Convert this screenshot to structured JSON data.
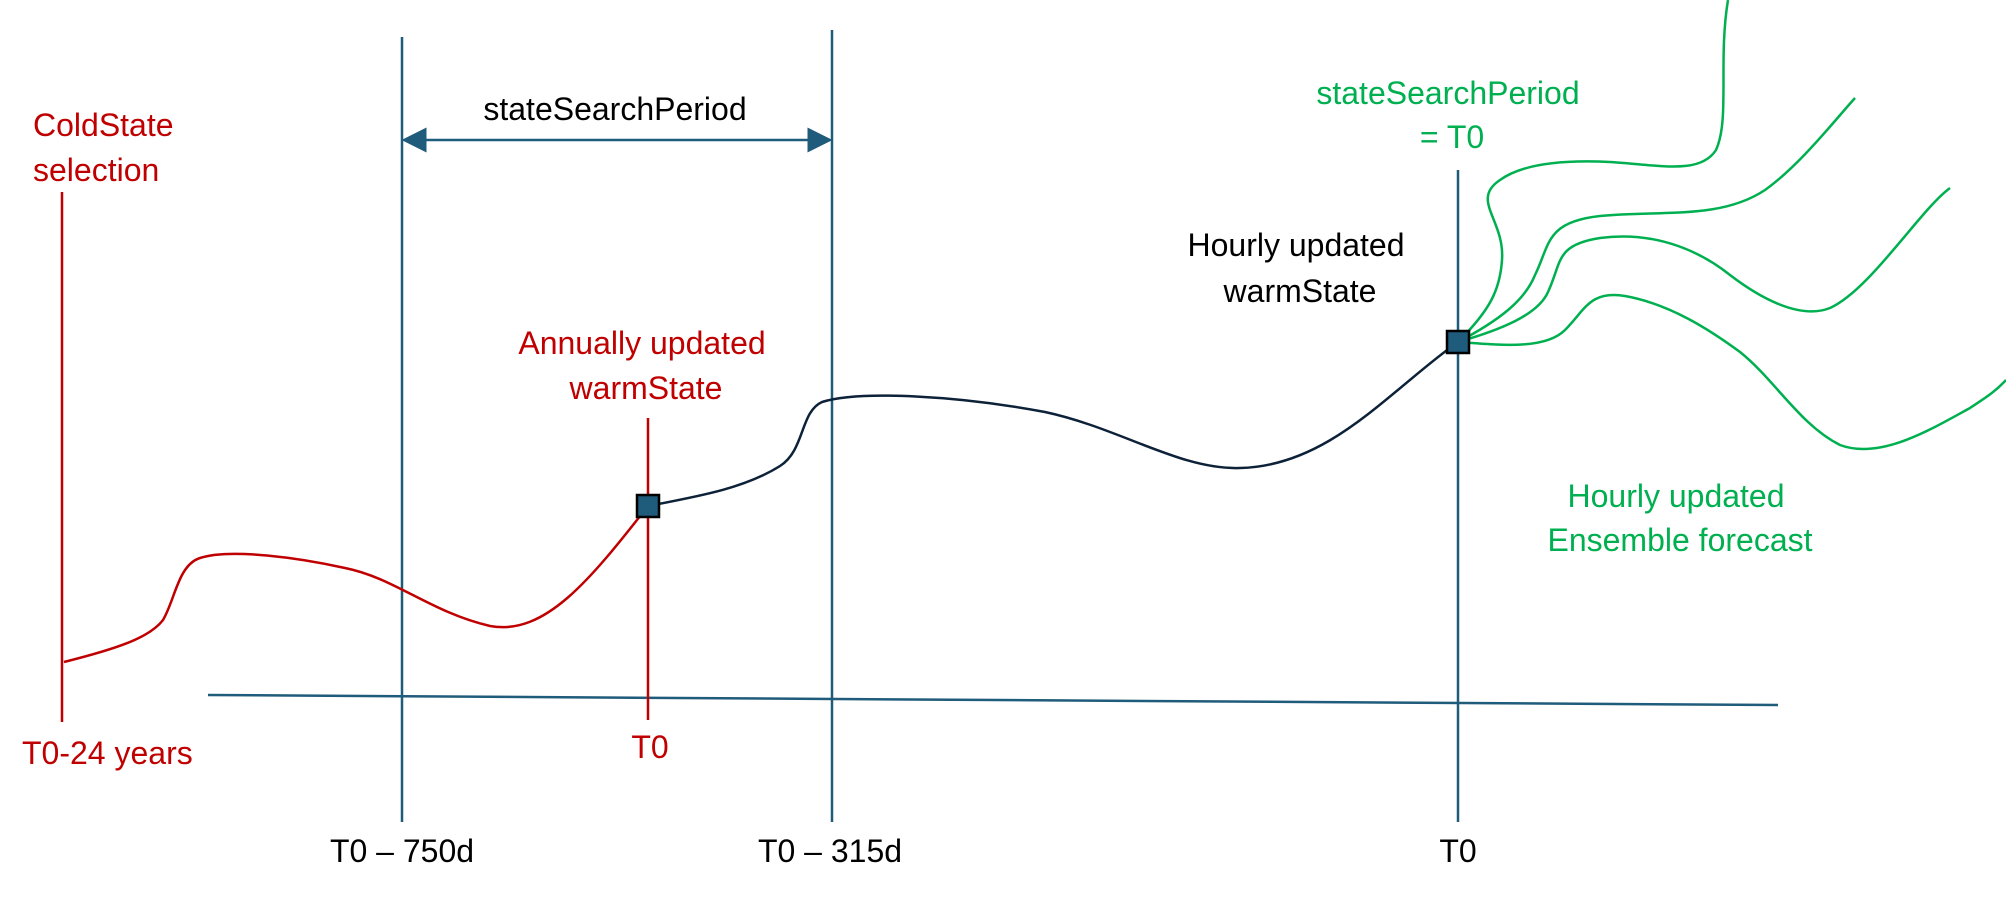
{
  "colors": {
    "blue": "#1f5b7a",
    "dark": "#0d2238",
    "red": "#c00000",
    "green": "#00b050",
    "state_fill": "#1f5b7a"
  },
  "labels": {
    "coldstate_line1": "ColdState",
    "coldstate_line2": "selection",
    "t0_24_years": "T0-24 years",
    "state_search_period": "stateSearchPeriod",
    "annual_line1": "Annually updated",
    "annual_line2": "warmState",
    "t0_red": "T0",
    "hourly_warm_line1": "Hourly updated",
    "hourly_warm_line2": "warmState",
    "green_ssp_line1": "stateSearchPeriod",
    "green_ssp_line2": "= T0",
    "ensemble_line1": "Hourly updated",
    "ensemble_line2": "Ensemble forecast"
  },
  "axis_labels": {
    "t0_750d": "T0 – 750d",
    "t0_315d": "T0 – 315d",
    "t0": "T0"
  }
}
